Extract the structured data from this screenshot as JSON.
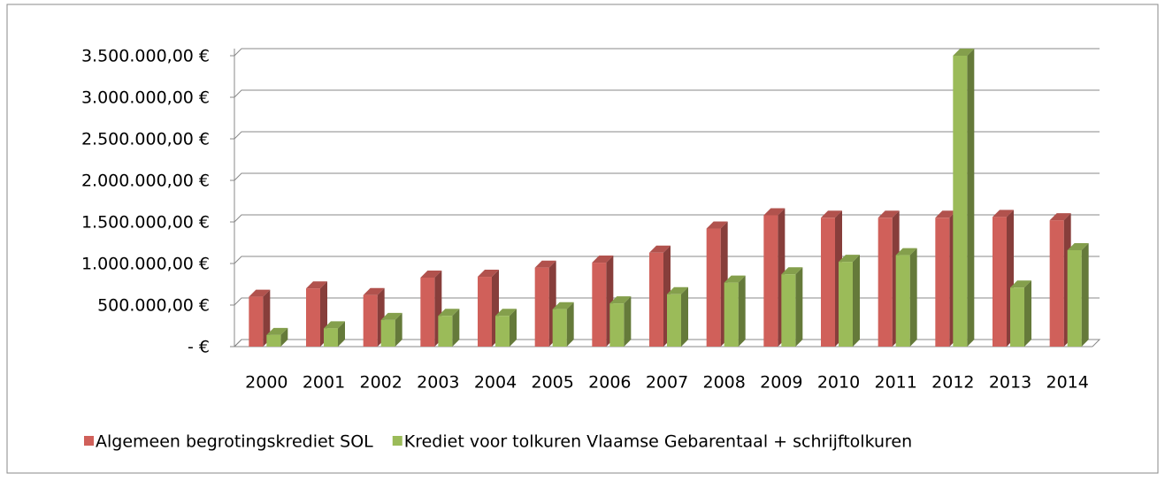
{
  "chart_data": {
    "type": "bar3d",
    "categories": [
      "2000",
      "2001",
      "2002",
      "2003",
      "2004",
      "2005",
      "2006",
      "2007",
      "2008",
      "2009",
      "2010",
      "2011",
      "2012",
      "2013",
      "2014"
    ],
    "series": [
      {
        "name": "Algemeen begrotingskrediet SOL",
        "color": "#d0605a",
        "values": [
          600000,
          700000,
          620000,
          830000,
          840000,
          950000,
          1010000,
          1130000,
          1420000,
          1580000,
          1550000,
          1550000,
          1550000,
          1560000,
          1520000
        ]
      },
      {
        "name": "Krediet voor tolkuren Vlaamse Gebarentaal + schrijftolkuren",
        "color": "#9bbb59",
        "values": [
          140000,
          220000,
          320000,
          370000,
          370000,
          450000,
          520000,
          630000,
          770000,
          870000,
          1020000,
          1100000,
          3500000,
          710000,
          1160000
        ]
      }
    ],
    "ylim": [
      0,
      3500000
    ],
    "yticks": [
      {
        "value": 0,
        "label": "-  €"
      },
      {
        "value": 500000,
        "label": "500.000,00 €"
      },
      {
        "value": 1000000,
        "label": "1.000.000,00 €"
      },
      {
        "value": 1500000,
        "label": "1.500.000,00 €"
      },
      {
        "value": 2000000,
        "label": "2.000.000,00 €"
      },
      {
        "value": 2500000,
        "label": "2.500.000,00 €"
      },
      {
        "value": 3000000,
        "label": "3.000.000,00 €"
      },
      {
        "value": 3500000,
        "label": "3.500.000,00 €"
      }
    ],
    "grid": true,
    "legend": "bottom"
  }
}
